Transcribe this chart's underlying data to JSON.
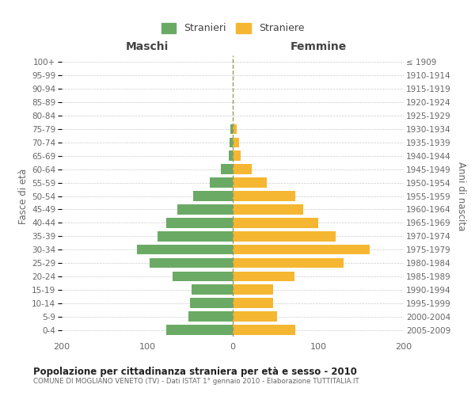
{
  "age_groups": [
    "0-4",
    "5-9",
    "10-14",
    "15-19",
    "20-24",
    "25-29",
    "30-34",
    "35-39",
    "40-44",
    "45-49",
    "50-54",
    "55-59",
    "60-64",
    "65-69",
    "70-74",
    "75-79",
    "80-84",
    "85-89",
    "90-94",
    "95-99",
    "100+"
  ],
  "birth_years": [
    "2005-2009",
    "2000-2004",
    "1995-1999",
    "1990-1994",
    "1985-1989",
    "1980-1984",
    "1975-1979",
    "1970-1974",
    "1965-1969",
    "1960-1964",
    "1955-1959",
    "1950-1954",
    "1945-1949",
    "1940-1944",
    "1935-1939",
    "1930-1934",
    "1925-1929",
    "1920-1924",
    "1915-1919",
    "1910-1914",
    "≤ 1909"
  ],
  "maschi": [
    78,
    52,
    50,
    48,
    70,
    97,
    112,
    88,
    78,
    65,
    46,
    27,
    14,
    5,
    4,
    3,
    0,
    0,
    0,
    0,
    0
  ],
  "femmine": [
    73,
    52,
    47,
    47,
    72,
    130,
    160,
    120,
    100,
    82,
    73,
    40,
    22,
    9,
    7,
    5,
    0,
    0,
    0,
    0,
    0
  ],
  "male_color": "#6aaa64",
  "female_color": "#f5b731",
  "background_color": "#ffffff",
  "grid_color": "#cccccc",
  "title": "Popolazione per cittadinanza straniera per età e sesso - 2010",
  "subtitle": "COMUNE DI MOGLIANO VENETO (TV) - Dati ISTAT 1° gennaio 2010 - Elaborazione TUTTITALIA.IT",
  "ylabel_left": "Fasce di età",
  "ylabel_right": "Anni di nascita",
  "xlabel_maschi": "Maschi",
  "xlabel_femmine": "Femmine",
  "legend_male": "Stranieri",
  "legend_female": "Straniere",
  "xlim": 200,
  "bar_height": 0.75,
  "dashed_color": "#999966"
}
